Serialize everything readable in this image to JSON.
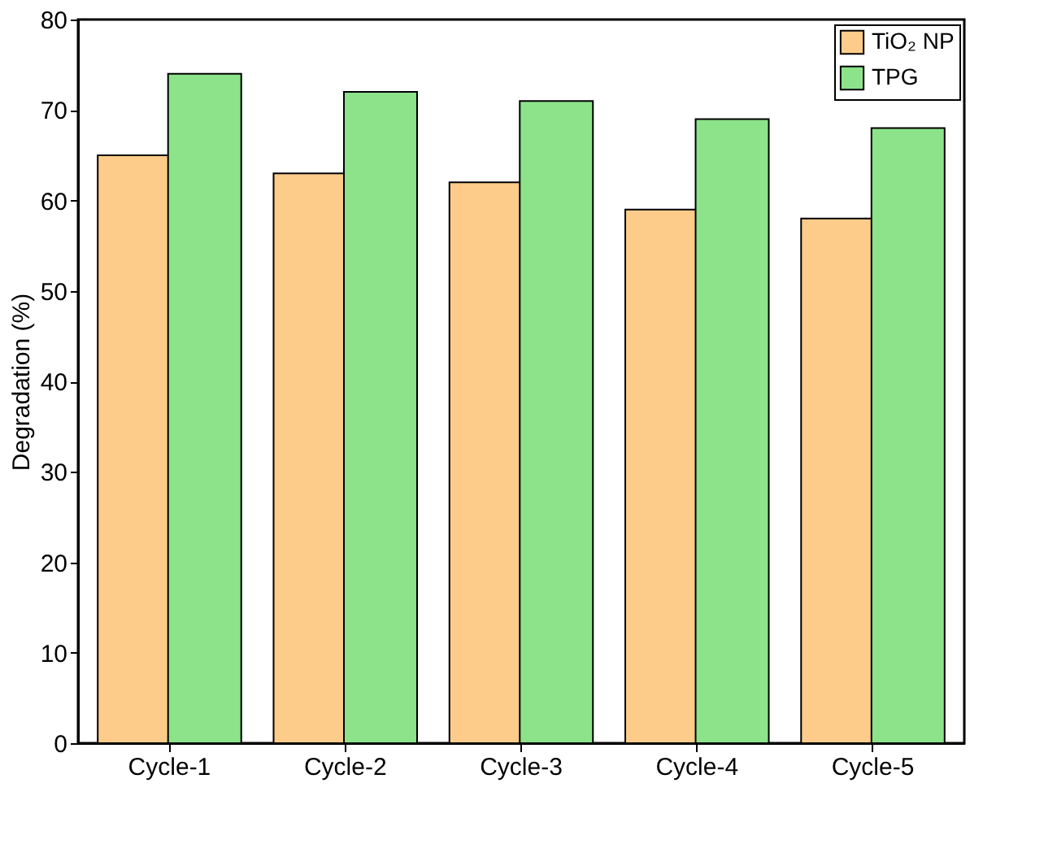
{
  "chart_data": {
    "type": "bar",
    "ylabel": "Degradation (%)",
    "categories": [
      "Cycle-1",
      "Cycle-2",
      "Cycle-3",
      "Cycle-4",
      "Cycle-5"
    ],
    "series": [
      {
        "name": "TiO₂ NP",
        "color": "#fdcc8a",
        "values": [
          65,
          63,
          62,
          59,
          58
        ]
      },
      {
        "name": "TPG",
        "color": "#8ce38a",
        "values": [
          74,
          72,
          71,
          69,
          68
        ]
      }
    ],
    "ylim": [
      0,
      80
    ],
    "yticks": [
      0,
      10,
      20,
      30,
      40,
      50,
      60,
      70,
      80
    ],
    "legend": "top right"
  }
}
